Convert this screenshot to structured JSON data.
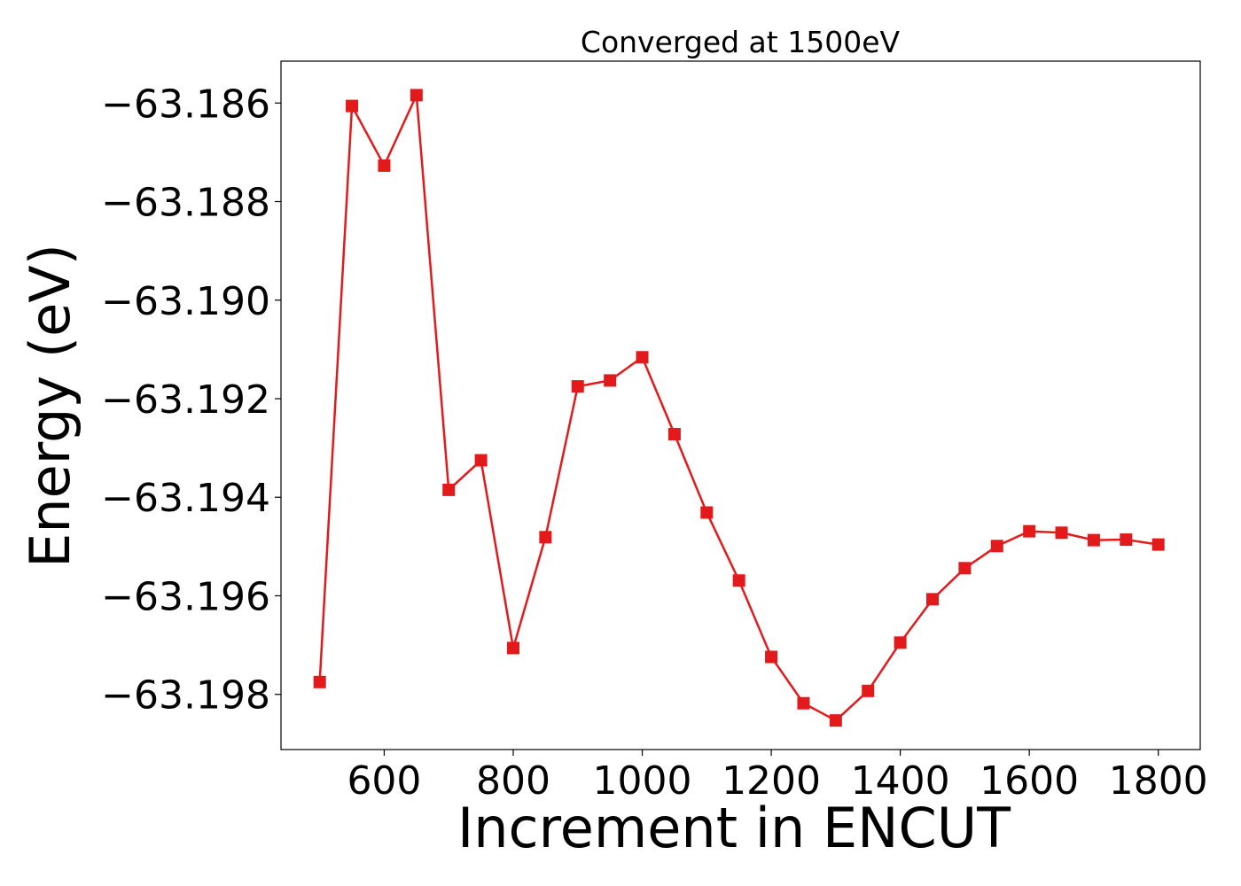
{
  "chart_data": {
    "type": "line",
    "title": "Converged at 1500eV",
    "xlabel": "Increment in ENCUT",
    "ylabel": "Energy (eV)",
    "xlim": [
      440,
      1865
    ],
    "ylim": [
      -63.19912,
      -63.18515
    ],
    "x_ticks": [
      600,
      800,
      1000,
      1200,
      1400,
      1600,
      1800
    ],
    "x_tick_labels": [
      "600",
      "800",
      "1000",
      "1200",
      "1400",
      "1600",
      "1800"
    ],
    "y_ticks": [
      -63.186,
      -63.188,
      -63.19,
      -63.192,
      -63.194,
      -63.196,
      -63.198
    ],
    "y_tick_labels": [
      "−63.186",
      "−63.188",
      "−63.190",
      "−63.192",
      "−63.194",
      "−63.196",
      "−63.198"
    ],
    "grid": false,
    "legend": "none",
    "series": [
      {
        "color": "#e31a1c",
        "marker": "square",
        "x": [
          500,
          550,
          600,
          650,
          700,
          750,
          800,
          850,
          900,
          950,
          1000,
          1050,
          1100,
          1150,
          1200,
          1250,
          1300,
          1350,
          1400,
          1450,
          1500,
          1550,
          1600,
          1650,
          1700,
          1750,
          1800
        ],
        "y": [
          -63.19775,
          -63.18606,
          -63.18727,
          -63.18584,
          -63.19385,
          -63.19325,
          -63.19706,
          -63.19481,
          -63.19175,
          -63.19163,
          -63.19116,
          -63.19272,
          -63.19431,
          -63.19569,
          -63.19724,
          -63.19818,
          -63.19853,
          -63.19793,
          -63.19695,
          -63.19607,
          -63.19544,
          -63.19499,
          -63.19469,
          -63.19472,
          -63.19487,
          -63.19486,
          -63.19496
        ]
      }
    ]
  }
}
